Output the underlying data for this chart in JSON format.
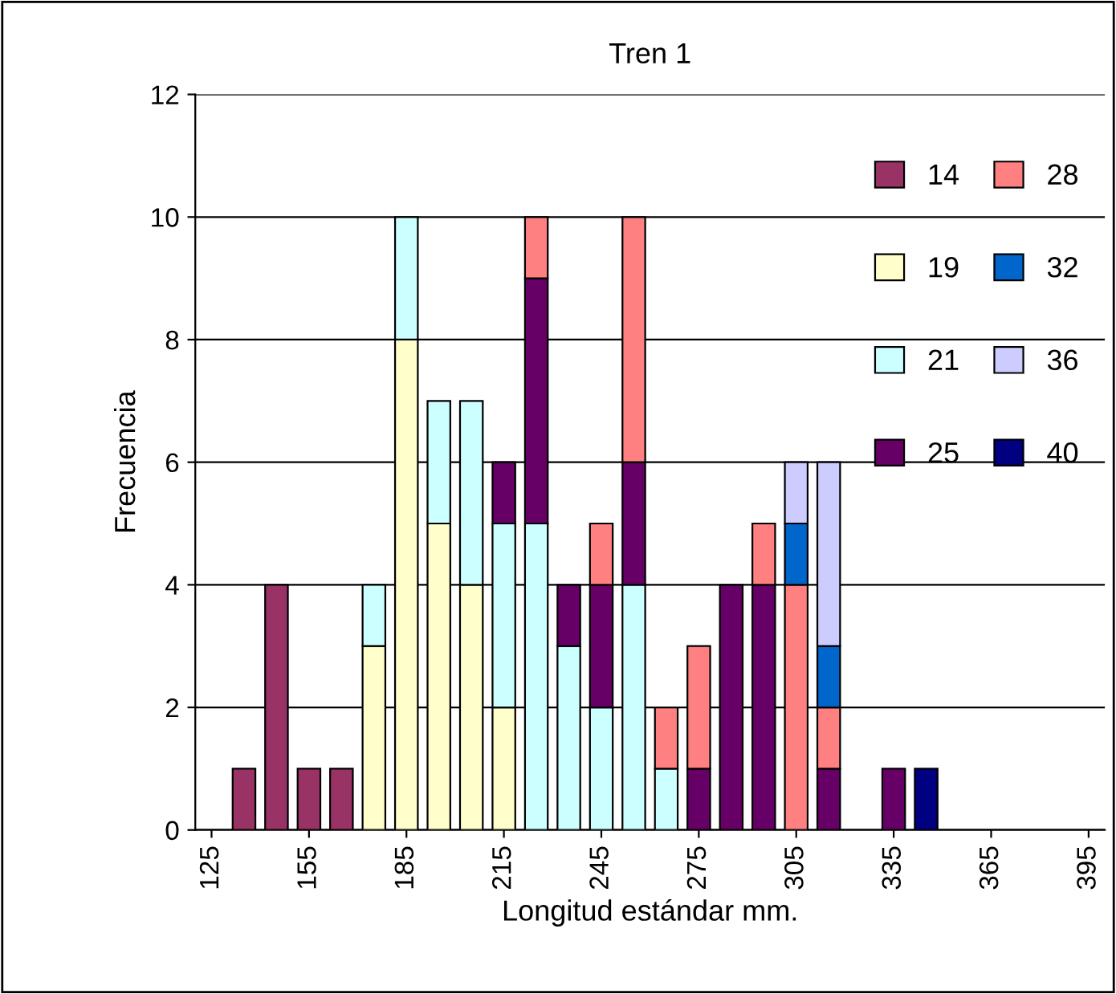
{
  "chart_data": {
    "type": "bar",
    "stacked": true,
    "title": "Tren 1",
    "xlabel": "Longitud estándar mm.",
    "ylabel": "Frecuencia",
    "categories": [
      "125",
      null,
      null,
      "155",
      null,
      null,
      "185",
      null,
      null,
      "215",
      null,
      null,
      "245",
      null,
      null,
      "275",
      null,
      null,
      "305",
      null,
      null,
      "335",
      null,
      null,
      "365",
      null,
      null,
      "395"
    ],
    "series": [
      {
        "name": "14",
        "color": "#993366",
        "values": [
          null,
          1,
          4,
          1,
          1,
          null,
          null,
          null,
          null,
          null,
          null,
          null,
          null,
          null,
          null,
          null,
          null,
          null,
          null,
          null,
          null,
          null,
          null,
          null,
          null,
          null,
          null,
          null
        ]
      },
      {
        "name": "19",
        "color": "#ffffcc",
        "values": [
          null,
          null,
          null,
          null,
          null,
          3,
          8,
          5,
          4,
          2,
          null,
          null,
          null,
          null,
          null,
          null,
          null,
          null,
          null,
          null,
          null,
          null,
          null,
          null,
          null,
          null,
          null,
          null
        ]
      },
      {
        "name": "21",
        "color": "#ccffff",
        "values": [
          null,
          null,
          null,
          null,
          null,
          1,
          2,
          2,
          3,
          3,
          5,
          3,
          2,
          4,
          1,
          null,
          null,
          null,
          null,
          null,
          null,
          null,
          null,
          null,
          null,
          null,
          null,
          null
        ]
      },
      {
        "name": "25",
        "color": "#660066",
        "values": [
          null,
          null,
          null,
          null,
          null,
          null,
          null,
          null,
          null,
          1,
          4,
          1,
          2,
          2,
          null,
          1,
          4,
          4,
          null,
          1,
          null,
          1,
          null,
          null,
          null,
          null,
          null,
          null
        ]
      },
      {
        "name": "28",
        "color": "#ff8080",
        "values": [
          null,
          null,
          null,
          null,
          null,
          null,
          null,
          null,
          null,
          null,
          1,
          null,
          1,
          4,
          1,
          2,
          null,
          1,
          4,
          1,
          null,
          null,
          null,
          null,
          null,
          null,
          null,
          null
        ]
      },
      {
        "name": "32",
        "color": "#0066cc",
        "values": [
          null,
          null,
          null,
          null,
          null,
          null,
          null,
          null,
          null,
          null,
          null,
          null,
          null,
          null,
          null,
          null,
          null,
          null,
          1,
          1,
          null,
          null,
          null,
          null,
          null,
          null,
          null,
          null
        ]
      },
      {
        "name": "36",
        "color": "#ccccff",
        "values": [
          null,
          null,
          null,
          null,
          null,
          null,
          null,
          null,
          null,
          null,
          null,
          null,
          null,
          null,
          null,
          null,
          null,
          null,
          1,
          3,
          null,
          null,
          null,
          null,
          null,
          null,
          null,
          null
        ]
      },
      {
        "name": "40",
        "color": "#000080",
        "values": [
          null,
          null,
          null,
          null,
          null,
          null,
          null,
          null,
          null,
          null,
          null,
          null,
          null,
          null,
          null,
          null,
          null,
          null,
          null,
          null,
          null,
          null,
          1,
          null,
          null,
          null,
          null,
          null
        ]
      }
    ],
    "ylim": [
      0,
      12
    ],
    "yticks": [
      0,
      2,
      4,
      6,
      8,
      10,
      12
    ],
    "grid": "y",
    "legend": "right"
  }
}
